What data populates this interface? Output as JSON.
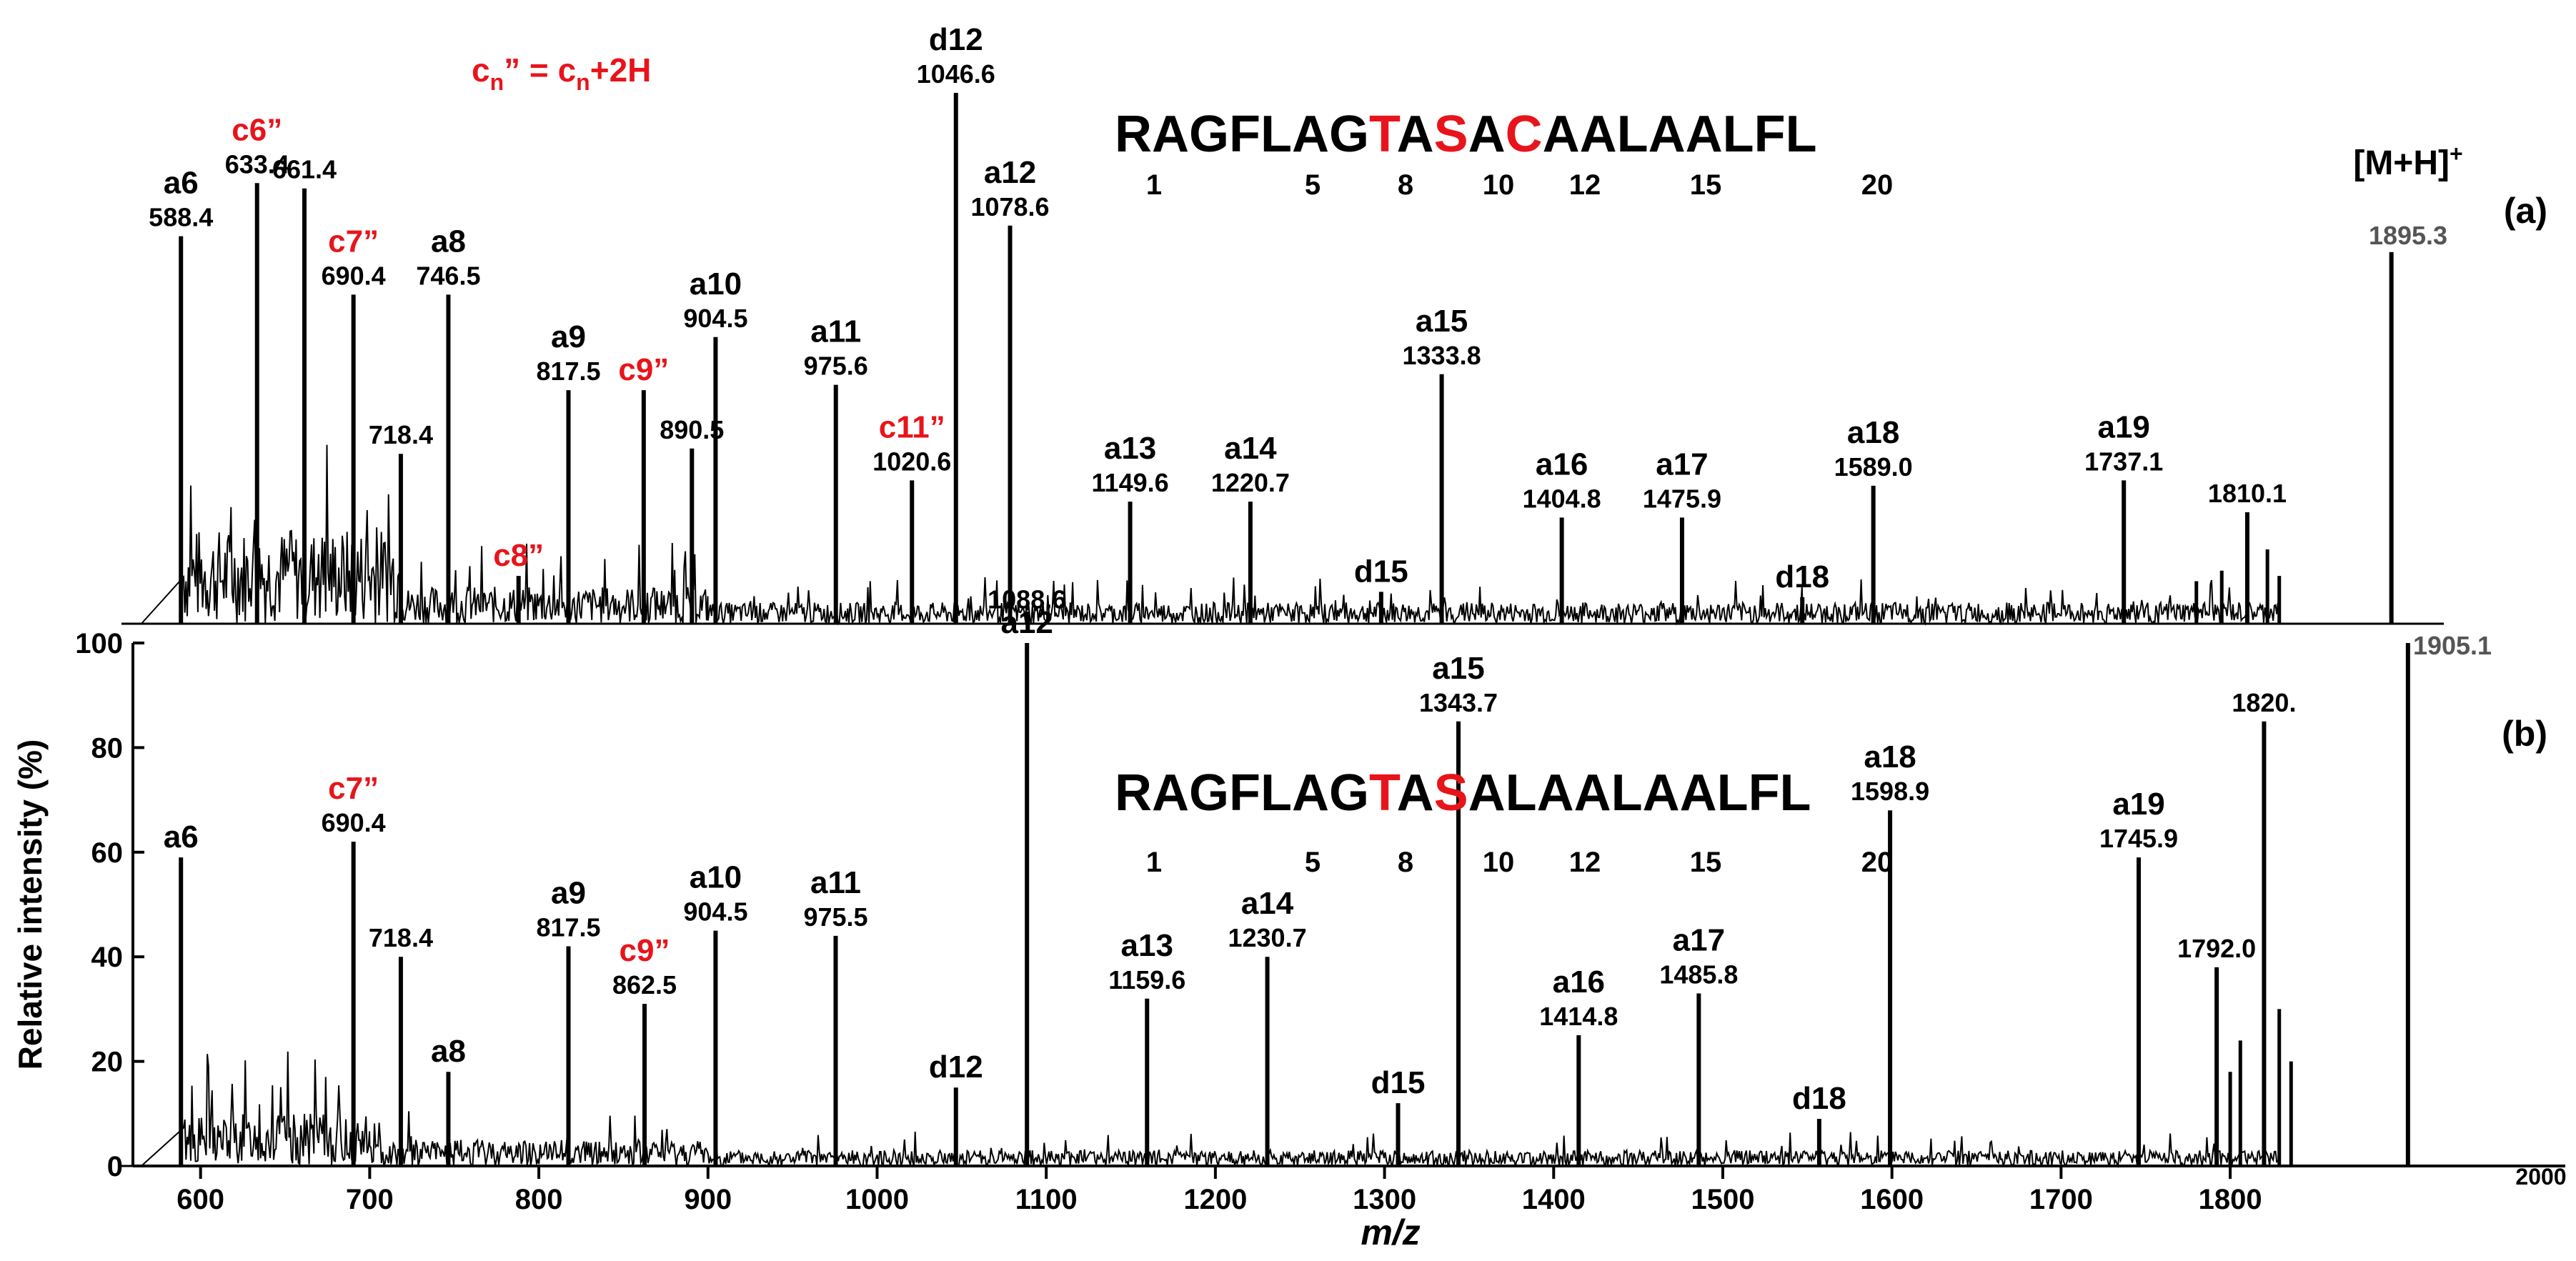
{
  "figure": {
    "formula": {
      "main": "c",
      "sub": "n",
      "rhs": "” = c",
      "rhs_sub": "n",
      "tail": "+2H"
    },
    "xlabel": "m/z",
    "ylabel": "Relative intensity (%)",
    "x_ticks": [
      "600",
      "700",
      "800",
      "900",
      "1000",
      "1100",
      "1200",
      "1300",
      "1400",
      "1500",
      "1600",
      "1700",
      "1800",
      "2000"
    ],
    "y_ticks": [
      "0",
      "20",
      "40",
      "60",
      "80",
      "100"
    ],
    "colors": {
      "black": "#000000",
      "red": "#e8141b"
    }
  },
  "chart_data": [
    {
      "type": "line",
      "panel": "(a)",
      "sequence": [
        {
          "t": "RAGFLAG",
          "red": false
        },
        {
          "t": "T",
          "red": true
        },
        {
          "t": "A",
          "red": false
        },
        {
          "t": "S",
          "red": true
        },
        {
          "t": "A",
          "red": false
        },
        {
          "t": "C",
          "red": true
        },
        {
          "t": "AALAALFL",
          "red": false
        }
      ],
      "residue_numbers": [
        "1",
        "5",
        "8",
        "10",
        "12",
        "15",
        "20"
      ],
      "precursor": {
        "label": "[M+H]",
        "sup": "+",
        "mz": "1895.3"
      },
      "xlim": [
        560,
        2000
      ],
      "ylim": [
        0,
        100
      ],
      "peaks": [
        {
          "mz": 588.4,
          "int": 73,
          "ion": "a6",
          "value": "588.4",
          "red": false
        },
        {
          "mz": 633.4,
          "int": 83,
          "ion": "c6”",
          "value": "633.4",
          "red": true
        },
        {
          "mz": 661.4,
          "int": 82,
          "ion": "",
          "value": "661.4",
          "red": false
        },
        {
          "mz": 690.4,
          "int": 62,
          "ion": "c7”",
          "value": "690.4",
          "red": true
        },
        {
          "mz": 718.4,
          "int": 32,
          "ion": "",
          "value": "718.4",
          "red": false
        },
        {
          "mz": 746.5,
          "int": 62,
          "ion": "a8",
          "value": "746.5",
          "red": false
        },
        {
          "mz": 788.0,
          "int": 9,
          "ion": "c8”",
          "value": "",
          "red": true
        },
        {
          "mz": 817.5,
          "int": 44,
          "ion": "a9",
          "value": "817.5",
          "red": false
        },
        {
          "mz": 862.0,
          "int": 44,
          "ion": "c9”",
          "value": "",
          "red": true
        },
        {
          "mz": 890.5,
          "int": 33,
          "ion": "",
          "value": "890.5",
          "red": false
        },
        {
          "mz": 904.5,
          "int": 54,
          "ion": "a10",
          "value": "904.5",
          "red": false
        },
        {
          "mz": 975.6,
          "int": 45,
          "ion": "a11",
          "value": "975.6",
          "red": false
        },
        {
          "mz": 1020.6,
          "int": 27,
          "ion": "c11”",
          "value": "1020.6",
          "red": true
        },
        {
          "mz": 1046.6,
          "int": 100,
          "ion": "d12",
          "value": "1046.6",
          "red": false
        },
        {
          "mz": 1078.6,
          "int": 75,
          "ion": "a12",
          "value": "1078.6",
          "red": false
        },
        {
          "mz": 1088.6,
          "int": 1,
          "ion": "",
          "value": "1088.6",
          "red": false
        },
        {
          "mz": 1149.6,
          "int": 23,
          "ion": "a13",
          "value": "1149.6",
          "red": false
        },
        {
          "mz": 1220.7,
          "int": 23,
          "ion": "a14",
          "value": "1220.7",
          "red": false
        },
        {
          "mz": 1298.0,
          "int": 6,
          "ion": "d15",
          "value": "",
          "red": false
        },
        {
          "mz": 1333.8,
          "int": 47,
          "ion": "a15",
          "value": "1333.8",
          "red": false
        },
        {
          "mz": 1404.8,
          "int": 20,
          "ion": "a16",
          "value": "1404.8",
          "red": false
        },
        {
          "mz": 1475.9,
          "int": 20,
          "ion": "a17",
          "value": "1475.9",
          "red": false
        },
        {
          "mz": 1547.0,
          "int": 5,
          "ion": "d18",
          "value": "",
          "red": false
        },
        {
          "mz": 1589.0,
          "int": 26,
          "ion": "a18",
          "value": "1589.0",
          "red": false
        },
        {
          "mz": 1737.1,
          "int": 27,
          "ion": "a19",
          "value": "1737.1",
          "red": false
        },
        {
          "mz": 1810.1,
          "int": 21,
          "ion": "",
          "value": "1810.1",
          "red": false
        },
        {
          "mz": 1895.3,
          "int": 70,
          "ion": "",
          "value": "",
          "red": false
        }
      ]
    },
    {
      "type": "line",
      "panel": "(b)",
      "sequence": [
        {
          "t": "RAGFLAG",
          "red": false
        },
        {
          "t": "T",
          "red": true
        },
        {
          "t": "A",
          "red": false
        },
        {
          "t": "S",
          "red": true
        },
        {
          "t": "ALAALAALFL",
          "red": false
        }
      ],
      "residue_numbers": [
        "1",
        "5",
        "8",
        "10",
        "12",
        "15",
        "20"
      ],
      "precursor": {
        "label": "",
        "sup": "",
        "mz": "1905.1"
      },
      "xlim": [
        560,
        2000
      ],
      "ylim": [
        0,
        100
      ],
      "peaks": [
        {
          "mz": 588.4,
          "int": 59,
          "ion": "a6",
          "value": "",
          "red": false
        },
        {
          "mz": 690.4,
          "int": 62,
          "ion": "c7”",
          "value": "690.4",
          "red": true
        },
        {
          "mz": 718.4,
          "int": 40,
          "ion": "",
          "value": "718.4",
          "red": false
        },
        {
          "mz": 746.5,
          "int": 18,
          "ion": "a8",
          "value": "",
          "red": false
        },
        {
          "mz": 817.5,
          "int": 42,
          "ion": "a9",
          "value": "817.5",
          "red": false
        },
        {
          "mz": 862.5,
          "int": 31,
          "ion": "c9”",
          "value": "862.5",
          "red": true
        },
        {
          "mz": 904.5,
          "int": 45,
          "ion": "a10",
          "value": "904.5",
          "red": false
        },
        {
          "mz": 975.5,
          "int": 44,
          "ion": "a11",
          "value": "975.5",
          "red": false
        },
        {
          "mz": 1046.6,
          "int": 15,
          "ion": "d12",
          "value": "",
          "red": false
        },
        {
          "mz": 1088.6,
          "int": 100,
          "ion": "a12",
          "value": "",
          "red": false
        },
        {
          "mz": 1159.6,
          "int": 32,
          "ion": "a13",
          "value": "1159.6",
          "red": false
        },
        {
          "mz": 1230.7,
          "int": 40,
          "ion": "a14",
          "value": "1230.7",
          "red": false
        },
        {
          "mz": 1308.0,
          "int": 12,
          "ion": "d15",
          "value": "",
          "red": false
        },
        {
          "mz": 1343.7,
          "int": 85,
          "ion": "a15",
          "value": "1343.7",
          "red": false
        },
        {
          "mz": 1414.8,
          "int": 25,
          "ion": "a16",
          "value": "1414.8",
          "red": false
        },
        {
          "mz": 1485.8,
          "int": 33,
          "ion": "a17",
          "value": "1485.8",
          "red": false
        },
        {
          "mz": 1557.0,
          "int": 9,
          "ion": "d18",
          "value": "",
          "red": false
        },
        {
          "mz": 1598.9,
          "int": 68,
          "ion": "a18",
          "value": "1598.9",
          "red": false
        },
        {
          "mz": 1745.9,
          "int": 59,
          "ion": "a19",
          "value": "1745.9",
          "red": false
        },
        {
          "mz": 1792.0,
          "int": 38,
          "ion": "",
          "value": "1792.0",
          "red": false
        },
        {
          "mz": 1820.0,
          "int": 85,
          "ion": "",
          "value": "1820.",
          "red": false
        },
        {
          "mz": 1905.1,
          "int": 100,
          "ion": "",
          "value": "",
          "red": false
        }
      ]
    }
  ]
}
